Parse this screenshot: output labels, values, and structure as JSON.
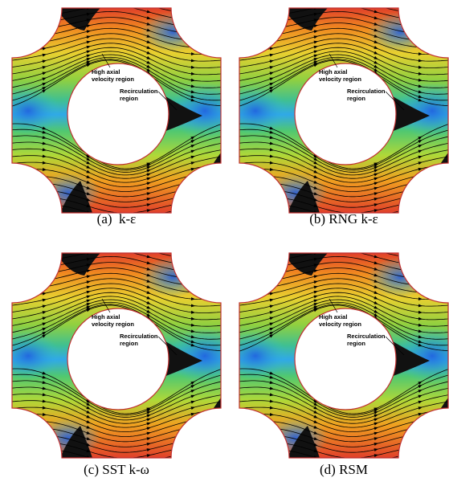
{
  "panels": [
    {
      "caption": "(a)  k-ε",
      "high_label": [
        "High axial",
        "velocity region"
      ],
      "recirc_label": [
        "Recirculation",
        "region"
      ]
    },
    {
      "caption": "(b) RNG k-ε",
      "high_label": [
        "High axial",
        "velocity region"
      ],
      "recirc_label": [
        "Recirculation",
        "region"
      ]
    },
    {
      "caption": "(c) SST k-ω",
      "high_label": [
        "High axial",
        "velocity region"
      ],
      "recirc_label": [
        "Recirculation",
        "region"
      ]
    },
    {
      "caption": "(d) RSM",
      "high_label": [
        "High axial",
        "velocity region"
      ],
      "recirc_label": [
        "Recirculation",
        "region"
      ]
    }
  ]
}
